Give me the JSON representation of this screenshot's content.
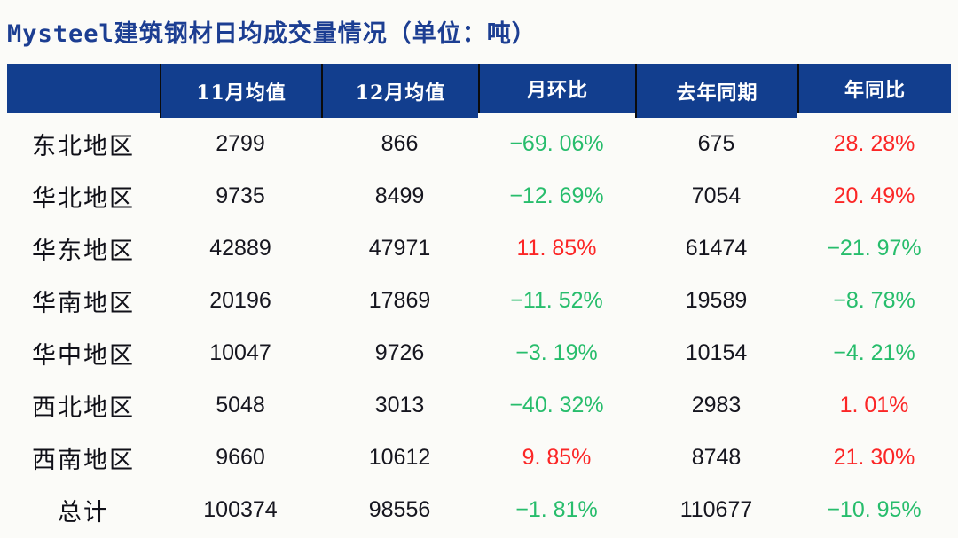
{
  "title": {
    "text": "Mysteel建筑钢材日均成交量情况（单位：吨）"
  },
  "colors": {
    "header_bg": "#123e8e",
    "header_separator": "#0b0b0b",
    "title_blue": "#1c3e92",
    "increase_red": "#fb2626",
    "decrease_green": "#27bd6c",
    "body_text": "#16161f",
    "page_bg": "#fbfbf8"
  },
  "table": {
    "headers": [
      "",
      "11月均值",
      "12月均值",
      "月环比",
      "去年同期",
      "年同比"
    ],
    "rows": [
      {
        "region": "东北地区",
        "nov": "2799",
        "dec": "866",
        "mom": "−69. 06%",
        "mom_trend": "down",
        "last_year": "675",
        "yoy": "28. 28%",
        "yoy_trend": "up"
      },
      {
        "region": "华北地区",
        "nov": "9735",
        "dec": "8499",
        "mom": "−12. 69%",
        "mom_trend": "down",
        "last_year": "7054",
        "yoy": "20. 49%",
        "yoy_trend": "up"
      },
      {
        "region": "华东地区",
        "nov": "42889",
        "dec": "47971",
        "mom": "11. 85%",
        "mom_trend": "up",
        "last_year": "61474",
        "yoy": "−21. 97%",
        "yoy_trend": "down"
      },
      {
        "region": "华南地区",
        "nov": "20196",
        "dec": "17869",
        "mom": "−11. 52%",
        "mom_trend": "down",
        "last_year": "19589",
        "yoy": "−8. 78%",
        "yoy_trend": "down"
      },
      {
        "region": "华中地区",
        "nov": "10047",
        "dec": "9726",
        "mom": "−3. 19%",
        "mom_trend": "down",
        "last_year": "10154",
        "yoy": "−4. 21%",
        "yoy_trend": "down"
      },
      {
        "region": "西北地区",
        "nov": "5048",
        "dec": "3013",
        "mom": "−40. 32%",
        "mom_trend": "down",
        "last_year": "2983",
        "yoy": "1. 01%",
        "yoy_trend": "up"
      },
      {
        "region": "西南地区",
        "nov": "9660",
        "dec": "10612",
        "mom": "9. 85%",
        "mom_trend": "up",
        "last_year": "8748",
        "yoy": "21. 30%",
        "yoy_trend": "up"
      },
      {
        "region": "总计",
        "nov": "100374",
        "dec": "98556",
        "mom": "−1. 81%",
        "mom_trend": "down",
        "last_year": "110677",
        "yoy": "−10. 95%",
        "yoy_trend": "down"
      }
    ]
  },
  "chart_data": {
    "type": "table",
    "title": "Mysteel建筑钢材日均成交量情况（单位：吨）",
    "unit": "吨",
    "columns": [
      "11月均值",
      "12月均值",
      "月环比",
      "去年同期",
      "年同比"
    ],
    "rows": [
      {
        "region": "东北地区",
        "nov_avg": 2799,
        "dec_avg": 866,
        "mom_pct": -69.06,
        "last_year_same_period": 675,
        "yoy_pct": 28.28
      },
      {
        "region": "华北地区",
        "nov_avg": 9735,
        "dec_avg": 8499,
        "mom_pct": -12.69,
        "last_year_same_period": 7054,
        "yoy_pct": 20.49
      },
      {
        "region": "华东地区",
        "nov_avg": 42889,
        "dec_avg": 47971,
        "mom_pct": 11.85,
        "last_year_same_period": 61474,
        "yoy_pct": -21.97
      },
      {
        "region": "华南地区",
        "nov_avg": 20196,
        "dec_avg": 17869,
        "mom_pct": -11.52,
        "last_year_same_period": 19589,
        "yoy_pct": -8.78
      },
      {
        "region": "华中地区",
        "nov_avg": 10047,
        "dec_avg": 9726,
        "mom_pct": -3.19,
        "last_year_same_period": 10154,
        "yoy_pct": -4.21
      },
      {
        "region": "西北地区",
        "nov_avg": 5048,
        "dec_avg": 3013,
        "mom_pct": -40.32,
        "last_year_same_period": 2983,
        "yoy_pct": 1.01
      },
      {
        "region": "西南地区",
        "nov_avg": 9660,
        "dec_avg": 10612,
        "mom_pct": 9.85,
        "last_year_same_period": 8748,
        "yoy_pct": 21.3
      },
      {
        "region": "总计",
        "nov_avg": 100374,
        "dec_avg": 98556,
        "mom_pct": -1.81,
        "last_year_same_period": 110677,
        "yoy_pct": -10.95
      }
    ],
    "color_convention": "positive change = red, negative change = green"
  }
}
